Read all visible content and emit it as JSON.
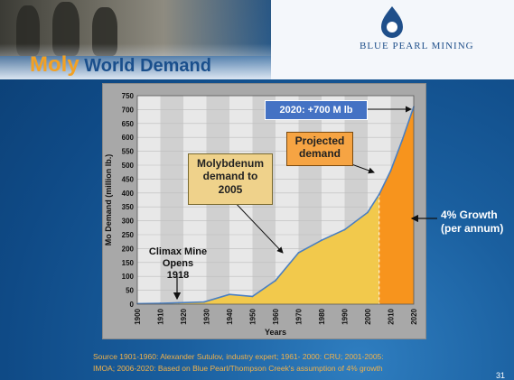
{
  "brand": {
    "name": "BLUE PEARL MINING"
  },
  "title": {
    "highlight": "Moly",
    "rest": "World Demand"
  },
  "callouts": {
    "forecast_2020": "2020: +700 M lb",
    "projected_line1": "Projected",
    "projected_line2": "demand",
    "moly_line1": "Molybdenum",
    "moly_line2": "demand to",
    "moly_line3": "2005",
    "climax_line1": "Climax Mine",
    "climax_line2": "Opens",
    "climax_line3": "1918"
  },
  "growth": {
    "line1": "4% Growth",
    "line2": "(per annum)"
  },
  "source": {
    "line1": "Source 1901-1960: Alexander Sutulov, industry expert; 1961- 2000: CRU; 2001-2005:",
    "line2": "IMOA; 2006-2020: Based on Blue Pearl/Thompson Creek's assumption of 4% growth"
  },
  "page_number": "31",
  "colors": {
    "historical_fill": "#f2c94c",
    "projected_fill": "#f7941d",
    "line": "#4a7fc1",
    "title_highlight": "#f2a124",
    "title": "#1a4f8c"
  },
  "chart_data": {
    "type": "area",
    "xlabel": "Years",
    "ylabel": "Mo Demand (million lb.)",
    "ylim": [
      0,
      750
    ],
    "xlim": [
      1900,
      2020
    ],
    "xticks": [
      1900,
      1910,
      1920,
      1930,
      1940,
      1950,
      1960,
      1970,
      1980,
      1990,
      2000,
      2010,
      2020
    ],
    "yticks": [
      0,
      50,
      100,
      150,
      200,
      250,
      300,
      350,
      400,
      450,
      500,
      550,
      600,
      650,
      700,
      750
    ],
    "grid": true,
    "series": [
      {
        "x": [
          1900,
          1910,
          1918,
          1929,
          1940,
          1950,
          1960,
          1970,
          1980,
          1990,
          2000,
          2005
        ],
        "values": [
          2,
          3,
          5,
          8,
          35,
          28,
          85,
          185,
          230,
          268,
          330,
          395
        ]
      },
      {
        "x": [
          2005,
          2010,
          2015,
          2020
        ],
        "values": [
          395,
          480,
          590,
          710
        ]
      }
    ]
  }
}
